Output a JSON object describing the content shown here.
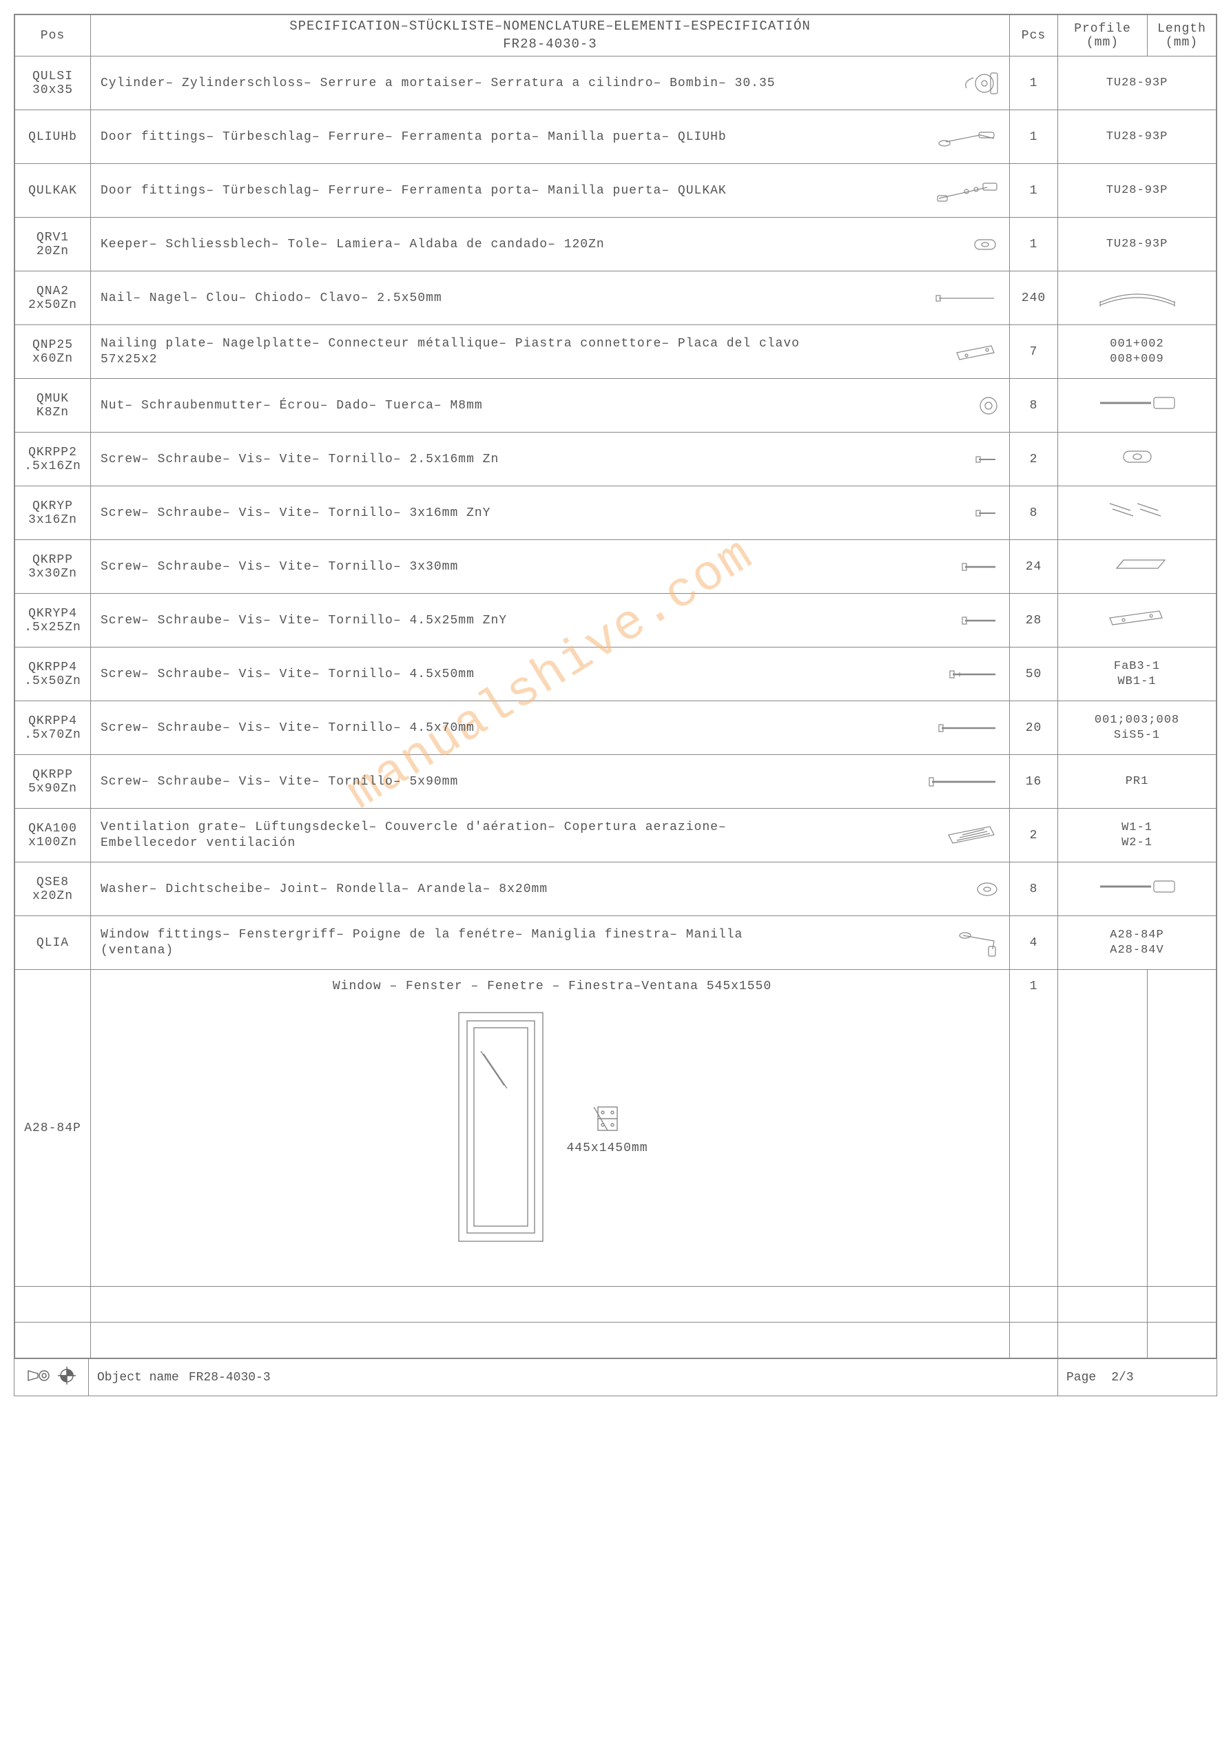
{
  "header": {
    "pos": "Pos",
    "spec_line1": "SPECIFICATION–STÜCKLISTE–NOMENCLATURE–ELEMENTI–ESPECIFICATIÓN",
    "spec_line2": "FR28-4030-3",
    "pcs": "Pcs",
    "profile": "Profile (mm)",
    "length": "Length (mm)"
  },
  "rows": [
    {
      "pos": "QULSI 30x35",
      "spec": "Cylinder– Zylinderschloss– Serrure a mortaiser– Serratura a cilindro– Bombin– 30.35",
      "pcs": "1",
      "profile": "TU28-93P",
      "length": "",
      "icon": "cylinder"
    },
    {
      "pos": "QLIUHb",
      "spec": "Door fittings– Türbeschlag– Ferrure– Ferramenta porta– Manilla puerta– QLIUHb",
      "pcs": "1",
      "profile": "TU28-93P",
      "length": "",
      "icon": "handle"
    },
    {
      "pos": "QULKAK",
      "spec": "Door fittings– Türbeschlag– Ferrure– Ferramenta porta– Manilla puerta– QULKAK",
      "pcs": "1",
      "profile": "TU28-93P",
      "length": "",
      "icon": "handle2"
    },
    {
      "pos": "QRV1 20Zn",
      "spec": "Keeper– Schliessblech– Tole– Lamiera– Aldaba de candado– 120Zn",
      "pcs": "1",
      "profile": "TU28-93P",
      "length": "",
      "icon": "keeper"
    },
    {
      "pos": "QNA2 2x50Zn",
      "spec": "Nail– Nagel– Clou– Chiodo– Clavo– 2.5x50mm",
      "pcs": "240",
      "profile": "",
      "length": "",
      "icon": "nail",
      "prof_icon": "arc"
    },
    {
      "pos": "QNP25 x60Zn",
      "spec": "Nailing plate– Nagelplatte– Connecteur métallique– Piastra connettore– Placa del clavo 57x25x2",
      "pcs": "7",
      "profile": "001+002 008+009",
      "length": "",
      "icon": "plate"
    },
    {
      "pos": "QMUK K8Zn",
      "spec": "Nut– Schraubenmutter– Écrou– Dado– Tuerca– M8mm",
      "pcs": "8",
      "profile": "",
      "length": "",
      "icon": "nut",
      "prof_icon": "bar"
    },
    {
      "pos": "QKRPP2 .5x16Zn",
      "spec": "Screw– Schraube– Vis– Vite– Tornillo– 2.5x16mm Zn",
      "pcs": "2",
      "profile": "",
      "length": "",
      "icon": "screw-s",
      "prof_icon": "keeper2"
    },
    {
      "pos": "QKRYP 3x16Zn",
      "spec": "Screw– Schraube– Vis– Vite– Tornillo– 3x16mm ZnY",
      "pcs": "8",
      "profile": "",
      "length": "",
      "icon": "screw-s",
      "prof_icon": "screws"
    },
    {
      "pos": "QKRPP 3x30Zn",
      "spec": "Screw– Schraube– Vis– Vite– Tornillo– 3x30mm",
      "pcs": "24",
      "profile": "",
      "length": "",
      "icon": "screw-m",
      "prof_icon": "block"
    },
    {
      "pos": "QKRYP4 .5x25Zn",
      "spec": "Screw– Schraube– Vis– Vite– Tornillo– 4.5x25mm ZnY",
      "pcs": "28",
      "profile": "",
      "length": "",
      "icon": "screw-m",
      "prof_icon": "plate2"
    },
    {
      "pos": "QKRPP4 .5x50Zn",
      "spec": "Screw– Schraube– Vis– Vite– Tornillo– 4.5x50mm",
      "pcs": "50",
      "profile": "FaB3-1 WB1-1",
      "length": "",
      "icon": "screw-l"
    },
    {
      "pos": "QKRPP4 .5x70Zn",
      "spec": "Screw– Schraube– Vis– Vite– Tornillo– 4.5x70mm",
      "pcs": "20",
      "profile": "001;003;008 SiS5-1",
      "length": "",
      "icon": "screw-xl"
    },
    {
      "pos": "QKRPP 5x90Zn",
      "spec": "Screw– Schraube– Vis– Vite– Tornillo– 5x90mm",
      "pcs": "16",
      "profile": "PR1",
      "length": "",
      "icon": "screw-xxl"
    },
    {
      "pos": "QKA100 x100Zn",
      "spec": "Ventilation grate– Lüftungsdeckel– Couvercle d'aération– Copertura aerazione– Embellecedor ventilación",
      "pcs": "2",
      "profile": "W1-1 W2-1",
      "length": "",
      "icon": "grate"
    },
    {
      "pos": "QSE8 x20Zn",
      "spec": "Washer– Dichtscheibe– Joint– Rondella– Arandela– 8x20mm",
      "pcs": "8",
      "profile": "",
      "length": "",
      "icon": "washer",
      "prof_icon": "bar"
    },
    {
      "pos": "QLIA",
      "spec": "Window fittings– Fenstergriff– Poigne de la fenétre– Maniglia finestra– Manilla (ventana)",
      "pcs": "4",
      "profile": "A28-84P A28-84V",
      "length": "",
      "icon": "winhandle"
    }
  ],
  "window_row": {
    "pos": "A28-84P",
    "title": "Window – Fenster – Fenetre – Finestra–Ventana 545x1550",
    "glass": "445x1450mm",
    "pcs": "1"
  },
  "watermark": "manualshive.com",
  "footer": {
    "object_label": "Object name",
    "object_value": "FR28-4030-3",
    "page_label": "Page",
    "page_value": "2/3"
  },
  "colors": {
    "border": "#888888",
    "text": "#555555",
    "watermark": "#f6b77a",
    "bg": "#ffffff"
  }
}
